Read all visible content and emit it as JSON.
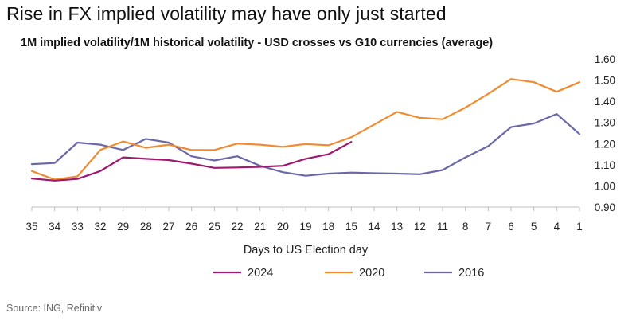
{
  "title": "Rise in FX implied volatility may have only just started",
  "chart_data": {
    "type": "line",
    "title": "1M implied volatility/1M historical volatility - USD crosses vs G10 currencies (average)",
    "xlabel": "Days to US Election day",
    "ylabel": "",
    "categories": [
      "35",
      "34",
      "33",
      "32",
      "29",
      "28",
      "27",
      "26",
      "25",
      "22",
      "21",
      "20",
      "19",
      "18",
      "15",
      "14",
      "13",
      "12",
      "11",
      "8",
      "7",
      "6",
      "5",
      "4",
      "1"
    ],
    "ylim": [
      0.9,
      1.6
    ],
    "yticks": [
      "1.60",
      "1.50",
      "1.40",
      "1.30",
      "1.20",
      "1.10",
      "1.00",
      "0.90"
    ],
    "series": [
      {
        "name": "2024",
        "color": "#a0196e",
        "values": [
          1.035,
          1.025,
          1.033,
          1.07,
          1.135,
          1.128,
          1.122,
          1.105,
          1.085,
          1.087,
          1.09,
          1.095,
          1.128,
          1.15,
          1.208,
          null,
          null,
          null,
          null,
          null,
          null,
          null,
          null,
          null,
          null
        ]
      },
      {
        "name": "2020",
        "color": "#f28b30",
        "values": [
          1.07,
          1.03,
          1.045,
          1.17,
          1.21,
          1.18,
          1.195,
          1.17,
          1.17,
          1.2,
          1.195,
          1.185,
          1.198,
          1.192,
          1.23,
          1.29,
          1.35,
          1.322,
          1.315,
          1.37,
          1.435,
          1.505,
          1.49,
          1.445,
          1.49
        ]
      },
      {
        "name": "2016",
        "color": "#6a68a8",
        "values": [
          1.103,
          1.108,
          1.205,
          1.195,
          1.17,
          1.222,
          1.205,
          1.14,
          1.12,
          1.14,
          1.095,
          1.065,
          1.048,
          1.058,
          1.063,
          1.06,
          1.058,
          1.055,
          1.075,
          1.135,
          1.188,
          1.278,
          1.295,
          1.34,
          1.245
        ]
      }
    ]
  },
  "source": "Source: ING, Refinitiv"
}
